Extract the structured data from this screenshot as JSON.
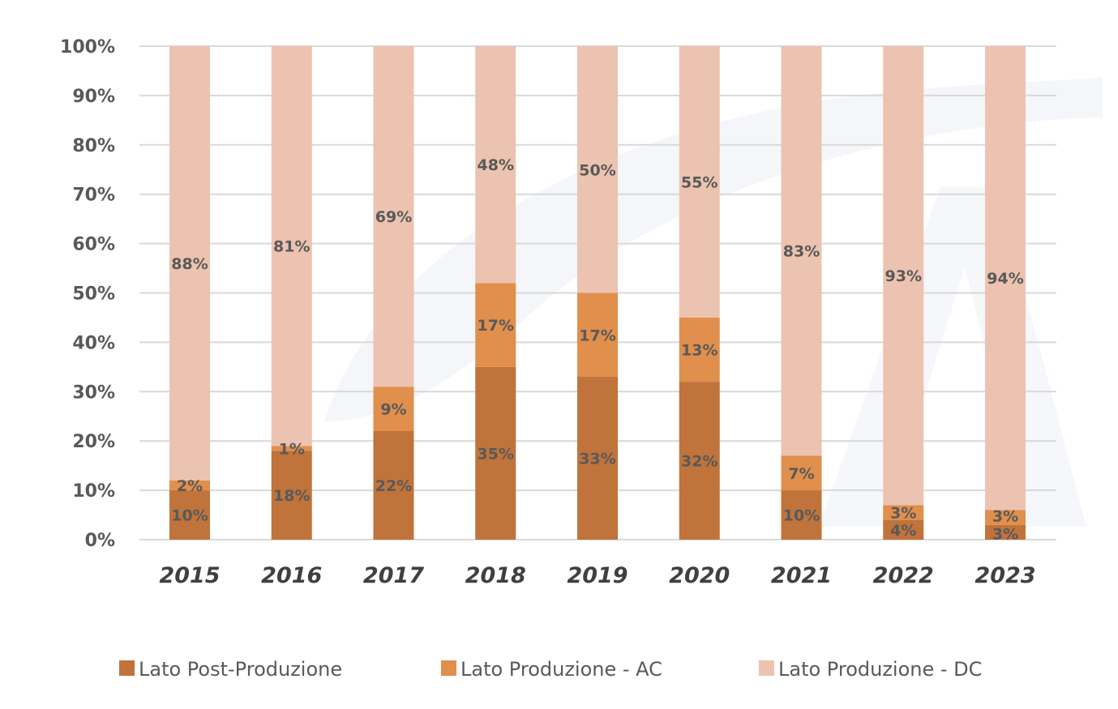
{
  "chart_data": {
    "type": "bar",
    "stacked": true,
    "categories": [
      "2015",
      "2016",
      "2017",
      "2018",
      "2019",
      "2020",
      "2021",
      "2022",
      "2023"
    ],
    "series": [
      {
        "name": "Lato Post-Produzione",
        "color": "#c0733a",
        "values": [
          10,
          18,
          22,
          35,
          33,
          32,
          10,
          4,
          3
        ]
      },
      {
        "name": "Lato Produzione - AC",
        "color": "#e08f4c",
        "values": [
          2,
          1,
          9,
          17,
          17,
          13,
          7,
          3,
          3
        ]
      },
      {
        "name": "Lato Produzione - DC",
        "color": "#ecc3b0",
        "values": [
          88,
          81,
          69,
          48,
          50,
          55,
          83,
          93,
          94
        ]
      }
    ],
    "title": "",
    "xlabel": "",
    "ylabel": "",
    "ylim": [
      0,
      100
    ],
    "yticks": [
      "0%",
      "10%",
      "20%",
      "30%",
      "40%",
      "50%",
      "60%",
      "70%",
      "80%",
      "90%",
      "100%"
    ],
    "grid": true,
    "legend_position": "bottom"
  }
}
